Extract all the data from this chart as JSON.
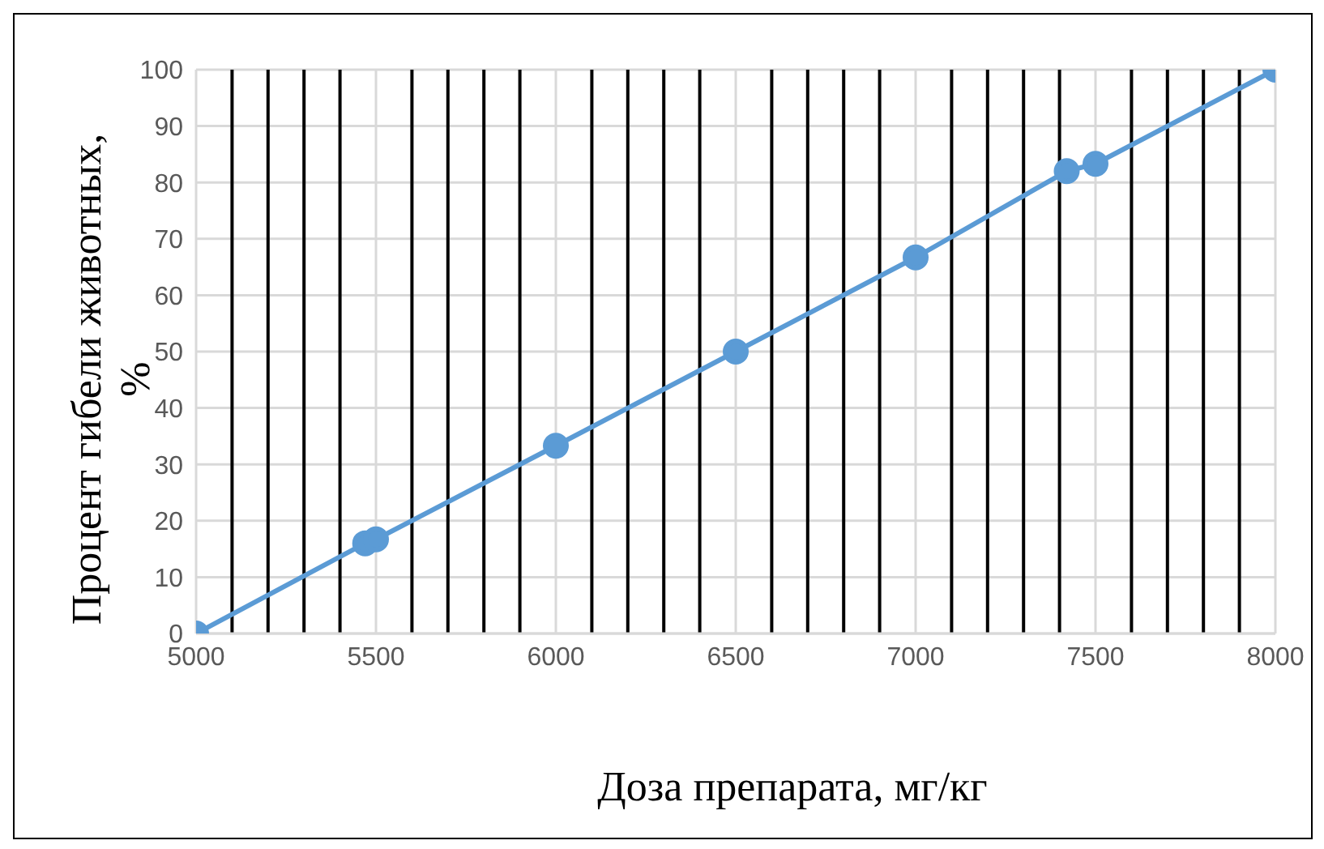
{
  "chart_data": {
    "type": "line",
    "xlabel": "Доза препарата, мг/кг",
    "ylabel": "Процент гибели животных, %",
    "x": [
      5000,
      5470,
      5500,
      6000,
      6500,
      7000,
      7420,
      7500,
      8000
    ],
    "series": [
      {
        "color": "#5b9bd5",
        "values": [
          0,
          16,
          16.7,
          33.3,
          50,
          66.7,
          82,
          83.3,
          100
        ]
      }
    ],
    "xlim": [
      5000,
      8000
    ],
    "xticks": [
      5000,
      {
        "value": 5100,
        "label": null
      },
      {
        "value": 5200,
        "label": null
      },
      {
        "value": 5300,
        "label": null
      },
      {
        "value": 5400,
        "label": null
      },
      5500,
      {
        "value": 5600,
        "label": null
      },
      {
        "value": 5700,
        "label": null
      },
      {
        "value": 5800,
        "label": null
      },
      {
        "value": 5900,
        "label": null
      },
      6000,
      {
        "value": 6100,
        "label": null
      },
      {
        "value": 6200,
        "label": null
      },
      {
        "value": 6300,
        "label": null
      },
      {
        "value": 6400,
        "label": null
      },
      6500,
      {
        "value": 6600,
        "label": null
      },
      {
        "value": 6700,
        "label": null
      },
      {
        "value": 6800,
        "label": null
      },
      {
        "value": 6900,
        "label": null
      },
      7000,
      {
        "value": 7100,
        "label": null
      },
      {
        "value": 7200,
        "label": null
      },
      {
        "value": 7300,
        "label": null
      },
      {
        "value": 7400,
        "label": null
      },
      7500,
      {
        "value": 7600,
        "label": null
      },
      {
        "value": 7700,
        "label": null
      },
      {
        "value": 7800,
        "label": null
      },
      {
        "value": 7900,
        "label": null
      },
      8000
    ],
    "ylim": [
      0,
      100
    ],
    "yticks": [
      0,
      10,
      20,
      30,
      40,
      50,
      60,
      70,
      80,
      90,
      100
    ],
    "grid": true,
    "marker": "circle",
    "line_style": "solid",
    "legend": false
  }
}
